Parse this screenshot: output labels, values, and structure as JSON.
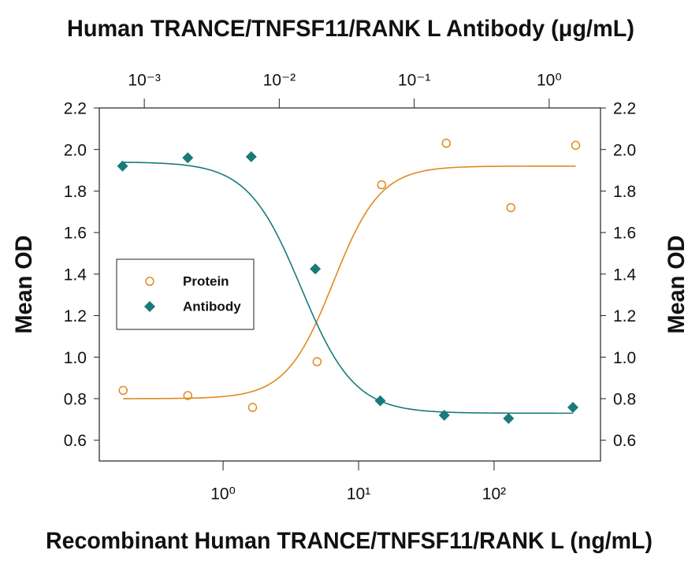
{
  "chart_data": {
    "type": "scatter",
    "title": "Human TRANCE/TNFSF11/RANK L Antibody (μg/mL)",
    "xlabel": "Recombinant Human TRANCE/TNFSF11/RANK L (ng/mL)",
    "ylabel": "Mean OD",
    "y2label": "Mean OD",
    "xscale": "log",
    "xlim": [
      0.122,
      610
    ],
    "xticks": [
      {
        "value": 1,
        "label": "10⁰"
      },
      {
        "value": 10,
        "label": "10¹"
      },
      {
        "value": 100,
        "label": "10²"
      }
    ],
    "x2scale": "log",
    "x2lim": [
      0.000464,
      2.4
    ],
    "x2ticks": [
      {
        "value": 0.001,
        "label": "10⁻³"
      },
      {
        "value": 0.01,
        "label": "10⁻²"
      },
      {
        "value": 0.1,
        "label": "10⁻¹"
      },
      {
        "value": 1,
        "label": "10⁰"
      }
    ],
    "ylim": [
      0.5,
      2.2
    ],
    "yticks": [
      0.6,
      0.8,
      {
        "value": 1,
        "label": "1.0"
      },
      1.2,
      1.4,
      1.6,
      1.8,
      {
        "value": 2,
        "label": "2.0"
      },
      2.2
    ],
    "y2lim": [
      0.5,
      2.2
    ],
    "y2ticks": [
      0.6,
      0.8,
      {
        "value": 1,
        "label": "1.0"
      },
      1.2,
      1.4,
      1.6,
      1.8,
      {
        "value": 2,
        "label": "2.0"
      },
      2.2
    ],
    "legend": "center left",
    "series": [
      {
        "name": "Protein",
        "color": "#e08a1e",
        "marker": "open-circle",
        "x": [
          0.183,
          0.549,
          1.65,
          4.94,
          14.8,
          44.4,
          133,
          400
        ],
        "values": [
          0.84,
          0.815,
          0.758,
          0.978,
          1.83,
          2.03,
          1.72,
          2.02
        ],
        "fit": {
          "start": 0.8,
          "end": 1.92,
          "ec50": 6.5,
          "hill": 2.5
        }
      },
      {
        "name": "Antibody",
        "color": "#1a7a7a",
        "marker": "diamond",
        "axis": "x2",
        "x": [
          0.00069,
          0.0021,
          0.0062,
          0.0185,
          0.056,
          0.167,
          0.5,
          1.5
        ],
        "values": [
          1.92,
          1.96,
          1.965,
          1.425,
          0.79,
          0.72,
          0.705,
          0.758
        ],
        "fit": {
          "start": 1.94,
          "end": 0.73,
          "ec50": 0.0145,
          "hill": 2.2
        }
      }
    ]
  }
}
